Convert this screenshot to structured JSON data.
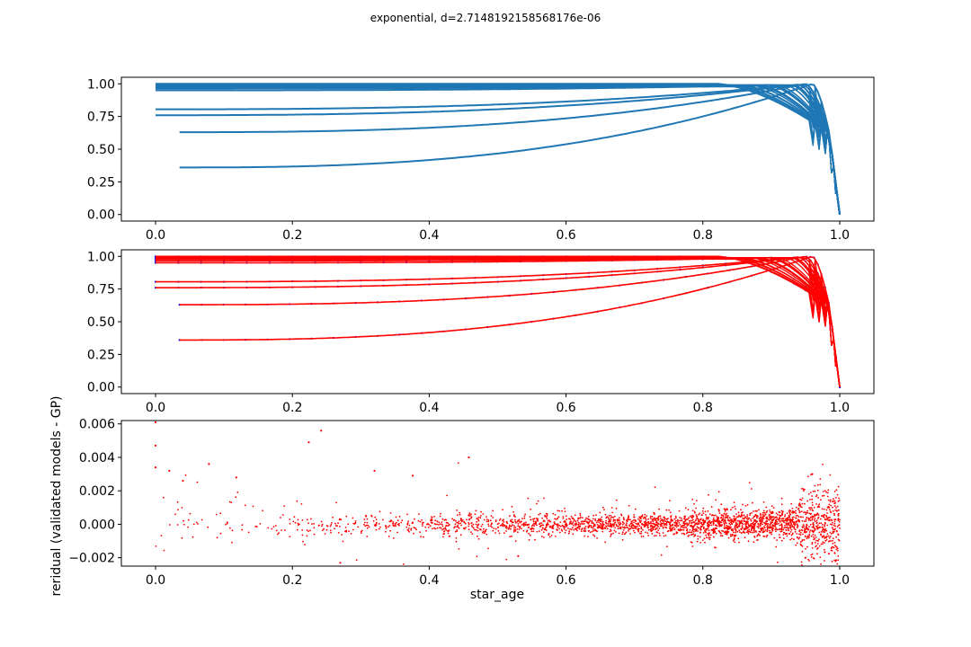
{
  "figure": {
    "suptitle": "exponential, d=2.7148192158568176e-06"
  },
  "colors": {
    "blue": "#1f77b4",
    "red": "#ff0000",
    "blue_dots": "#0000ff"
  },
  "chart_data": [
    {
      "type": "line",
      "panel": "top",
      "xlim": [
        -0.05,
        1.05
      ],
      "ylim": [
        -0.05,
        1.05
      ],
      "xticks": [
        "0.0",
        "0.2",
        "0.4",
        "0.6",
        "0.8",
        "1.0"
      ],
      "yticks": [
        "0.00",
        "0.25",
        "0.50",
        "0.75",
        "1.00"
      ],
      "grid": false,
      "series_color": "#1f77b4",
      "tracks": [
        {
          "x0": 0.0,
          "y0": 1.0,
          "peak_x": 0.82,
          "peak_y": 1.0
        },
        {
          "x0": 0.0,
          "y0": 0.99,
          "peak_x": 0.84,
          "peak_y": 0.99
        },
        {
          "x0": 0.0,
          "y0": 0.98,
          "peak_x": 0.86,
          "peak_y": 0.98
        },
        {
          "x0": 0.0,
          "y0": 0.965,
          "peak_x": 0.88,
          "peak_y": 0.985
        },
        {
          "x0": 0.0,
          "y0": 0.95,
          "peak_x": 0.9,
          "peak_y": 0.99
        },
        {
          "x0": 0.0,
          "y0": 0.805,
          "peak_x": 0.93,
          "peak_y": 0.99
        },
        {
          "x0": 0.0,
          "y0": 0.76,
          "peak_x": 0.94,
          "peak_y": 0.995
        },
        {
          "x0": 0.035,
          "y0": 0.63,
          "peak_x": 0.95,
          "peak_y": 1.0
        },
        {
          "x0": 0.035,
          "y0": 0.36,
          "peak_x": 0.96,
          "peak_y": 1.0
        }
      ]
    },
    {
      "type": "line",
      "panel": "middle",
      "xlim": [
        -0.05,
        1.05
      ],
      "ylim": [
        -0.05,
        1.05
      ],
      "xticks": [
        "0.0",
        "0.2",
        "0.4",
        "0.6",
        "0.8",
        "1.0"
      ],
      "yticks": [
        "0.00",
        "0.25",
        "0.50",
        "0.75",
        "1.00"
      ],
      "grid": false,
      "description": "GP prediction (red lines) over validated model points (blue dots); same tracks as top panel"
    },
    {
      "type": "scatter",
      "panel": "bottom",
      "xlabel": "star_age",
      "ylabel": "reridual (validated models - GP)",
      "xlim": [
        -0.05,
        1.05
      ],
      "ylim": [
        -0.0025,
        0.0062
      ],
      "xticks": [
        "0.0",
        "0.2",
        "0.4",
        "0.6",
        "0.8",
        "1.0"
      ],
      "yticks": [
        "−0.002",
        "0.000",
        "0.002",
        "0.004",
        "0.006"
      ],
      "grid": false,
      "marker_color": "#ff0000",
      "notable_points": [
        {
          "x": 0.0,
          "y": 0.0061
        },
        {
          "x": 0.0,
          "y": 0.0047
        },
        {
          "x": 0.0,
          "y": 0.0034
        },
        {
          "x": 0.02,
          "y": 0.0032
        },
        {
          "x": 0.04,
          "y": 0.0026
        },
        {
          "x": 0.078,
          "y": 0.0036
        },
        {
          "x": 0.118,
          "y": 0.0028
        },
        {
          "x": 0.224,
          "y": 0.0049
        },
        {
          "x": 0.242,
          "y": 0.0056
        },
        {
          "x": 0.32,
          "y": 0.0032
        },
        {
          "x": 0.376,
          "y": 0.0029
        },
        {
          "x": 0.458,
          "y": 0.004
        },
        {
          "x": 0.27,
          "y": -0.0023
        },
        {
          "x": 0.53,
          "y": -0.0019
        },
        {
          "x": 0.96,
          "y": 0.003
        },
        {
          "x": 0.95,
          "y": -0.002
        }
      ]
    }
  ]
}
